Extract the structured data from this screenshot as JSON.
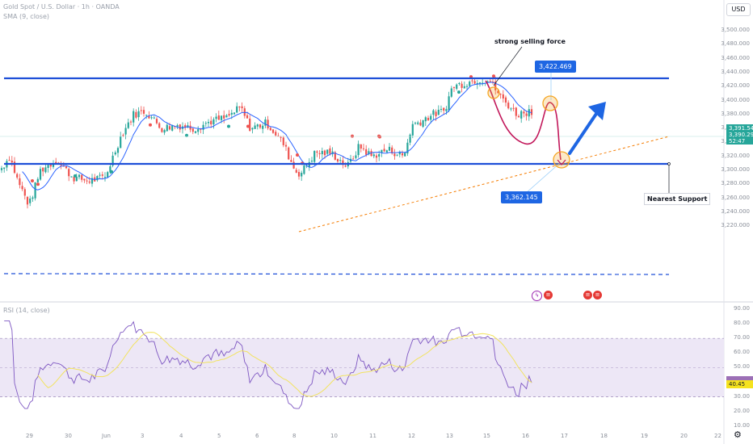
{
  "header": {
    "symbol_line": "Gold Spot / U.S. Dollar · 1h · OANDA",
    "sma_line": "SMA (9, close)",
    "currency_button": "USD"
  },
  "price_axis": {
    "labels": [
      "3,500.000",
      "3,480.000",
      "3,460.000",
      "3,440.000",
      "3,420.000",
      "3,400.000",
      "3,380.000",
      "3,360.000",
      "3,340.000",
      "3,320.000",
      "3,300.000",
      "3,280.000",
      "3,260.000",
      "3,240.000",
      "3,220.000"
    ],
    "current_price": "3,391.548",
    "secondary_price": "3,390.290",
    "countdown": "52:47"
  },
  "time_axis": {
    "labels": [
      "29",
      "30",
      "Jun",
      "3",
      "4",
      "5",
      "6",
      "8",
      "10",
      "11",
      "12",
      "13",
      "15",
      "16",
      "17",
      "18",
      "19",
      "20",
      "22"
    ]
  },
  "annotations": {
    "selling_force": "strong selling force",
    "top_target": "3,422.469",
    "bottom_target": "3,362.145",
    "nearest_support": "Nearest Support"
  },
  "rsi": {
    "legend": "RSI (14, close)",
    "axis_labels": [
      "90.00",
      "80.00",
      "70.00",
      "60.00",
      "50.00",
      "40.00",
      "30.00",
      "20.00",
      "10.00"
    ],
    "current_value": "40.45"
  },
  "colors": {
    "up_candle": "#26a69a",
    "down_candle": "#ef5350",
    "level_line": "#1e4fd8",
    "sma": "#2962ff",
    "rsi_line": "#7e57c2",
    "rsi_ma": "#f2e35f",
    "rsi_band": "#ede7f6",
    "projection": "#1e66e3",
    "path": "#c2185b",
    "circle": "#f5a623"
  },
  "icons": {
    "lightning": "lightning-icon",
    "flag": "us-flag-icon",
    "settings": "gear-icon"
  }
}
